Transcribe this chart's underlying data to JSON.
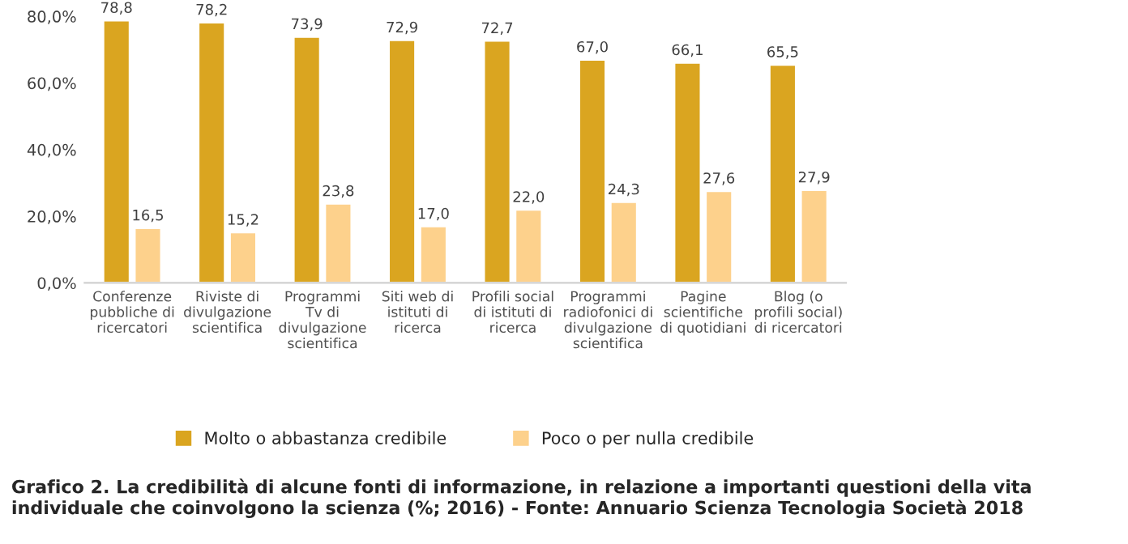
{
  "chart_data": {
    "type": "bar",
    "categories": [
      "Conferenze\npubbliche di\nricercatori",
      "Riviste di\ndivulgazione\nscientifica",
      "Programmi\nTv di\ndivulgazione\nscientifica",
      "Siti web di\nistituti di\nricerca",
      "Profili social\ndi istituti di\nricerca",
      "Programmi\nradiofonici di\ndivulgazione\nscientifica",
      "Pagine\nscientifiche\ndi quotidiani",
      "Blog (o\nprofili social)\ndi ricercatori"
    ],
    "series": [
      {
        "name": "Molto o abbastanza credibile",
        "color": "#daa520",
        "values": [
          78.8,
          78.2,
          73.9,
          72.9,
          72.7,
          67.0,
          66.1,
          65.5
        ],
        "value_labels": [
          "78,8",
          "78,2",
          "73,9",
          "72,9",
          "72,7",
          "67,0",
          "66,1",
          "65,5"
        ]
      },
      {
        "name": "Poco o per nulla credibile",
        "color": "#fdd18c",
        "values": [
          16.5,
          15.2,
          23.8,
          17.0,
          22.0,
          24.3,
          27.6,
          27.9
        ],
        "value_labels": [
          "16,5",
          "15,2",
          "23,8",
          "17,0",
          "22,0",
          "24,3",
          "27,6",
          "27,9"
        ]
      }
    ],
    "ylim": [
      0,
      80
    ],
    "yticks": [
      {
        "value": 0,
        "label": "0,0%"
      },
      {
        "value": 20,
        "label": "20,0%"
      },
      {
        "value": 40,
        "label": "40,0%"
      },
      {
        "value": 60,
        "label": "60,0%"
      },
      {
        "value": 80,
        "label": "80,0%"
      }
    ],
    "grid": false,
    "legend": "bottom",
    "annotations": [
      "Grafico 2. La credibilità di alcune fonti di informazione, in relazione a importanti questioni della vita individuale che coinvolgono la scienza (%; 2016) - Fonte: Annuario Scienza Tecnologia Società 2018"
    ]
  }
}
